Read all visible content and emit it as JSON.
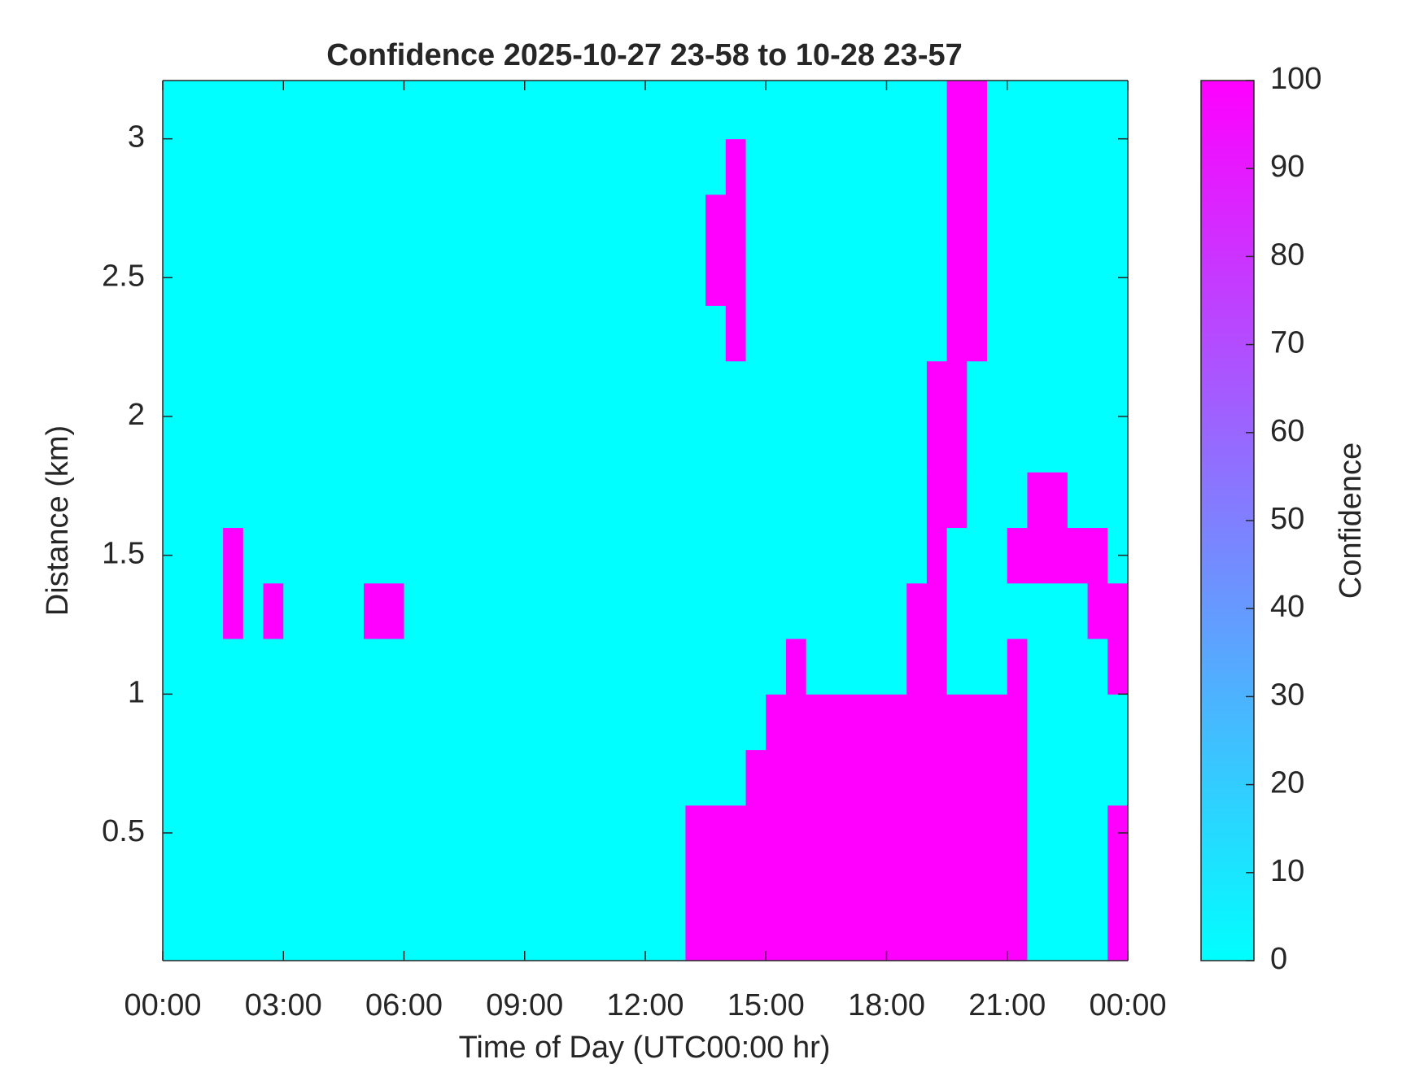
{
  "chart_data": {
    "type": "heatmap",
    "title": "Confidence 2025-10-27 23-58 to 10-28 23-57",
    "x_label": "Time of Day (UTC00:00 hr)",
    "y_label": "Distance (km)",
    "colorbar_label": "Confidence",
    "colormap": [
      "#00ffff",
      "#ff00ff"
    ],
    "clim": [
      0,
      100
    ],
    "cticks": [
      0,
      10,
      20,
      30,
      40,
      50,
      60,
      70,
      80,
      90,
      100
    ],
    "xlim": [
      0,
      24
    ],
    "xticks": [
      {
        "value": 0,
        "label": "00:00"
      },
      {
        "value": 3,
        "label": "03:00"
      },
      {
        "value": 6,
        "label": "06:00"
      },
      {
        "value": 9,
        "label": "09:00"
      },
      {
        "value": 12,
        "label": "12:00"
      },
      {
        "value": 15,
        "label": "15:00"
      },
      {
        "value": 18,
        "label": "18:00"
      },
      {
        "value": 21,
        "label": "21:00"
      },
      {
        "value": 24,
        "label": "00:00"
      }
    ],
    "ylim": [
      0.04,
      3.21
    ],
    "yticks": [
      0.5,
      1,
      1.5,
      2,
      2.5,
      3
    ],
    "x_edges": [
      0,
      0.5,
      1,
      1.5,
      2,
      2.5,
      3,
      3.5,
      4,
      4.5,
      5,
      5.5,
      6,
      6.5,
      7,
      7.5,
      8,
      8.5,
      9,
      9.5,
      10,
      10.5,
      11,
      11.5,
      12,
      12.5,
      13,
      13.5,
      14,
      14.5,
      15,
      15.5,
      16,
      16.5,
      17,
      17.5,
      18,
      18.5,
      19,
      19.5,
      20,
      20.5,
      21,
      21.5,
      22,
      22.5,
      23,
      23.5,
      24
    ],
    "y_edges": [
      0.04,
      0.2,
      0.4,
      0.6,
      0.8,
      1.0,
      1.2,
      1.4,
      1.6,
      1.8,
      2.0,
      2.2,
      2.4,
      2.6,
      2.8,
      3.0,
      3.21
    ],
    "z": [
      [
        0,
        0,
        0,
        0,
        0,
        0,
        0,
        0,
        0,
        0,
        0,
        0,
        0,
        0,
        0,
        0,
        0,
        0,
        0,
        0,
        0,
        0,
        0,
        0,
        0,
        0,
        100,
        100,
        100,
        100,
        100,
        100,
        100,
        100,
        100,
        100,
        100,
        100,
        100,
        100,
        100,
        100,
        100,
        0,
        0,
        0,
        0,
        100
      ],
      [
        0,
        0,
        0,
        0,
        0,
        0,
        0,
        0,
        0,
        0,
        0,
        0,
        0,
        0,
        0,
        0,
        0,
        0,
        0,
        0,
        0,
        0,
        0,
        0,
        0,
        0,
        100,
        100,
        100,
        100,
        100,
        100,
        100,
        100,
        100,
        100,
        100,
        100,
        100,
        100,
        100,
        100,
        100,
        0,
        0,
        0,
        0,
        100
      ],
      [
        0,
        0,
        0,
        0,
        0,
        0,
        0,
        0,
        0,
        0,
        0,
        0,
        0,
        0,
        0,
        0,
        0,
        0,
        0,
        0,
        0,
        0,
        0,
        0,
        0,
        0,
        100,
        100,
        100,
        100,
        100,
        100,
        100,
        100,
        100,
        100,
        100,
        100,
        100,
        100,
        100,
        100,
        100,
        0,
        0,
        0,
        0,
        100
      ],
      [
        0,
        0,
        0,
        0,
        0,
        0,
        0,
        0,
        0,
        0,
        0,
        0,
        0,
        0,
        0,
        0,
        0,
        0,
        0,
        0,
        0,
        0,
        0,
        0,
        0,
        0,
        0,
        0,
        0,
        100,
        100,
        100,
        100,
        100,
        100,
        100,
        100,
        100,
        100,
        100,
        100,
        100,
        100,
        0,
        0,
        0,
        0,
        0
      ],
      [
        0,
        0,
        0,
        0,
        0,
        0,
        0,
        0,
        0,
        0,
        0,
        0,
        0,
        0,
        0,
        0,
        0,
        0,
        0,
        0,
        0,
        0,
        0,
        0,
        0,
        0,
        0,
        0,
        0,
        0,
        100,
        100,
        100,
        100,
        100,
        100,
        100,
        100,
        100,
        100,
        100,
        100,
        100,
        0,
        0,
        0,
        0,
        0
      ],
      [
        0,
        0,
        0,
        0,
        0,
        0,
        0,
        0,
        0,
        0,
        0,
        0,
        0,
        0,
        0,
        0,
        0,
        0,
        0,
        0,
        0,
        0,
        0,
        0,
        0,
        0,
        0,
        0,
        0,
        0,
        0,
        100,
        0,
        0,
        0,
        0,
        0,
        100,
        100,
        0,
        0,
        0,
        100,
        0,
        0,
        0,
        0,
        100
      ],
      [
        0,
        0,
        0,
        100,
        0,
        100,
        0,
        0,
        0,
        0,
        100,
        100,
        0,
        0,
        0,
        0,
        0,
        0,
        0,
        0,
        0,
        0,
        0,
        0,
        0,
        0,
        0,
        0,
        0,
        0,
        0,
        0,
        0,
        0,
        0,
        0,
        0,
        100,
        100,
        0,
        0,
        0,
        0,
        0,
        0,
        0,
        100,
        100
      ],
      [
        0,
        0,
        0,
        100,
        0,
        0,
        0,
        0,
        0,
        0,
        0,
        0,
        0,
        0,
        0,
        0,
        0,
        0,
        0,
        0,
        0,
        0,
        0,
        0,
        0,
        0,
        0,
        0,
        0,
        0,
        0,
        0,
        0,
        0,
        0,
        0,
        0,
        0,
        100,
        0,
        0,
        0,
        100,
        100,
        100,
        100,
        100,
        0
      ],
      [
        0,
        0,
        0,
        0,
        0,
        0,
        0,
        0,
        0,
        0,
        0,
        0,
        0,
        0,
        0,
        0,
        0,
        0,
        0,
        0,
        0,
        0,
        0,
        0,
        0,
        0,
        0,
        0,
        0,
        0,
        0,
        0,
        0,
        0,
        0,
        0,
        0,
        0,
        100,
        100,
        0,
        0,
        0,
        100,
        100,
        0,
        0,
        0
      ],
      [
        0,
        0,
        0,
        0,
        0,
        0,
        0,
        0,
        0,
        0,
        0,
        0,
        0,
        0,
        0,
        0,
        0,
        0,
        0,
        0,
        0,
        0,
        0,
        0,
        0,
        0,
        0,
        0,
        0,
        0,
        0,
        0,
        0,
        0,
        0,
        0,
        0,
        0,
        100,
        100,
        0,
        0,
        0,
        0,
        0,
        0,
        0,
        0
      ],
      [
        0,
        0,
        0,
        0,
        0,
        0,
        0,
        0,
        0,
        0,
        0,
        0,
        0,
        0,
        0,
        0,
        0,
        0,
        0,
        0,
        0,
        0,
        0,
        0,
        0,
        0,
        0,
        0,
        0,
        0,
        0,
        0,
        0,
        0,
        0,
        0,
        0,
        0,
        100,
        100,
        0,
        0,
        0,
        0,
        0,
        0,
        0,
        0
      ],
      [
        0,
        0,
        0,
        0,
        0,
        0,
        0,
        0,
        0,
        0,
        0,
        0,
        0,
        0,
        0,
        0,
        0,
        0,
        0,
        0,
        0,
        0,
        0,
        0,
        0,
        0,
        0,
        0,
        100,
        0,
        0,
        0,
        0,
        0,
        0,
        0,
        0,
        0,
        0,
        100,
        100,
        0,
        0,
        0,
        0,
        0,
        0,
        0
      ],
      [
        0,
        0,
        0,
        0,
        0,
        0,
        0,
        0,
        0,
        0,
        0,
        0,
        0,
        0,
        0,
        0,
        0,
        0,
        0,
        0,
        0,
        0,
        0,
        0,
        0,
        0,
        0,
        100,
        100,
        0,
        0,
        0,
        0,
        0,
        0,
        0,
        0,
        0,
        0,
        100,
        100,
        0,
        0,
        0,
        0,
        0,
        0,
        0
      ],
      [
        0,
        0,
        0,
        0,
        0,
        0,
        0,
        0,
        0,
        0,
        0,
        0,
        0,
        0,
        0,
        0,
        0,
        0,
        0,
        0,
        0,
        0,
        0,
        0,
        0,
        0,
        0,
        100,
        100,
        0,
        0,
        0,
        0,
        0,
        0,
        0,
        0,
        0,
        0,
        100,
        100,
        0,
        0,
        0,
        0,
        0,
        0,
        0
      ],
      [
        0,
        0,
        0,
        0,
        0,
        0,
        0,
        0,
        0,
        0,
        0,
        0,
        0,
        0,
        0,
        0,
        0,
        0,
        0,
        0,
        0,
        0,
        0,
        0,
        0,
        0,
        0,
        0,
        100,
        0,
        0,
        0,
        0,
        0,
        0,
        0,
        0,
        0,
        0,
        100,
        100,
        0,
        0,
        0,
        0,
        0,
        0,
        0
      ],
      [
        0,
        0,
        0,
        0,
        0,
        0,
        0,
        0,
        0,
        0,
        0,
        0,
        0,
        0,
        0,
        0,
        0,
        0,
        0,
        0,
        0,
        0,
        0,
        0,
        0,
        0,
        0,
        0,
        0,
        0,
        0,
        0,
        0,
        0,
        0,
        0,
        0,
        0,
        0,
        100,
        100,
        0,
        0,
        0,
        0,
        0,
        0,
        0
      ]
    ]
  }
}
